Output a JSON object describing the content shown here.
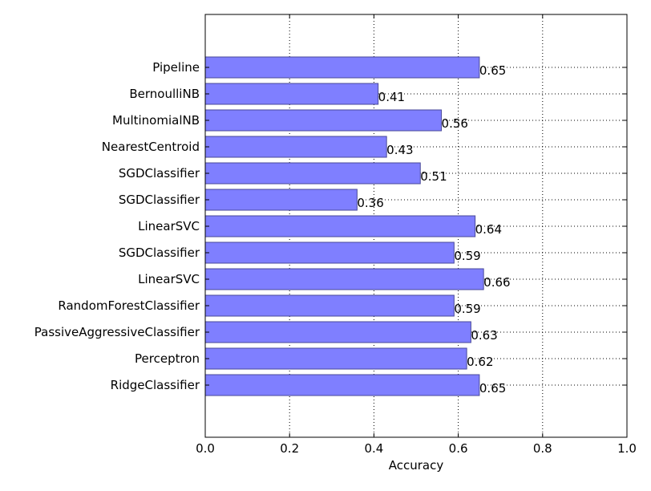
{
  "chart_data": {
    "type": "bar",
    "orientation": "horizontal",
    "title": "",
    "xlabel": "Accuracy",
    "ylabel": "",
    "xlim": [
      0.0,
      1.0
    ],
    "xticks": [
      "0.0",
      "0.2",
      "0.4",
      "0.6",
      "0.8",
      "1.0"
    ],
    "grid": true,
    "bar_color": "#7f7fff",
    "bar_edge_color": "#4a4a99",
    "categories": [
      "Pipeline",
      "BernoulliNB",
      "MultinomialNB",
      "NearestCentroid",
      "SGDClassifier",
      "SGDClassifier",
      "LinearSVC",
      "SGDClassifier",
      "LinearSVC",
      "RandomForestClassifier",
      "PassiveAggressiveClassifier",
      "Perceptron",
      "RidgeClassifier"
    ],
    "values": [
      0.65,
      0.41,
      0.56,
      0.43,
      0.51,
      0.36,
      0.64,
      0.59,
      0.66,
      0.59,
      0.63,
      0.62,
      0.65
    ],
    "value_labels": [
      "0.65",
      "0.41",
      "0.56",
      "0.43",
      "0.51",
      "0.36",
      "0.64",
      "0.59",
      "0.66",
      "0.59",
      "0.63",
      "0.62",
      "0.65"
    ]
  }
}
